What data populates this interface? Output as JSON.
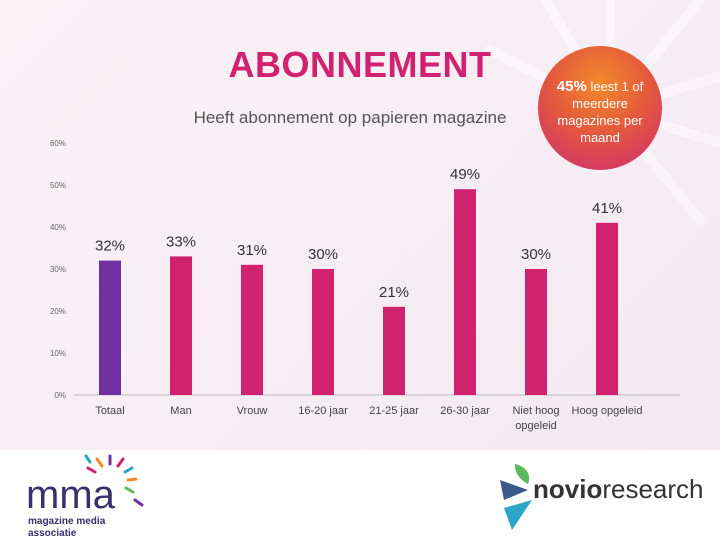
{
  "slide": {
    "title": "ABONNEMENT",
    "subtitle": "Heeft abonnement op papieren magazine",
    "callout": {
      "highlight": "45%",
      "line1": "leest 1 of",
      "line2": "meerdere",
      "line3": "magazines per",
      "line4": "maand"
    }
  },
  "chart_data": {
    "type": "bar",
    "categories": [
      "Totaal",
      "Man",
      "Vrouw",
      "16-20 jaar",
      "21-25 jaar",
      "26-30 jaar",
      "Niet hoog opgeleid",
      "Hoog opgeleid"
    ],
    "category_lines": [
      [
        "Totaal"
      ],
      [
        "Man"
      ],
      [
        "Vrouw"
      ],
      [
        "16-20 jaar"
      ],
      [
        "21-25 jaar"
      ],
      [
        "26-30 jaar"
      ],
      [
        "Niet hoog",
        "opgeleid"
      ],
      [
        "Hoog opgeleid"
      ]
    ],
    "values": [
      32,
      33,
      31,
      30,
      21,
      49,
      30,
      41
    ],
    "data_labels": [
      "32%",
      "33%",
      "31%",
      "30%",
      "21%",
      "49%",
      "30%",
      "41%"
    ],
    "bar_colors": [
      "#7030a0",
      "#d1226f",
      "#d1226f",
      "#d1226f",
      "#d1226f",
      "#d1226f",
      "#d1226f",
      "#d1226f"
    ],
    "ylim": [
      0,
      60
    ],
    "yticks": [
      0,
      10,
      20,
      30,
      40,
      50,
      60
    ],
    "ytick_labels": [
      "0%",
      "10%",
      "20%",
      "30%",
      "40%",
      "50%",
      "60%"
    ],
    "grid": false
  },
  "footer": {
    "left_logo": {
      "name": "mma",
      "line1": "magazine media",
      "line2": "associatie"
    },
    "right_logo": {
      "brand_bold": "novio",
      "brand_light": "research"
    }
  }
}
